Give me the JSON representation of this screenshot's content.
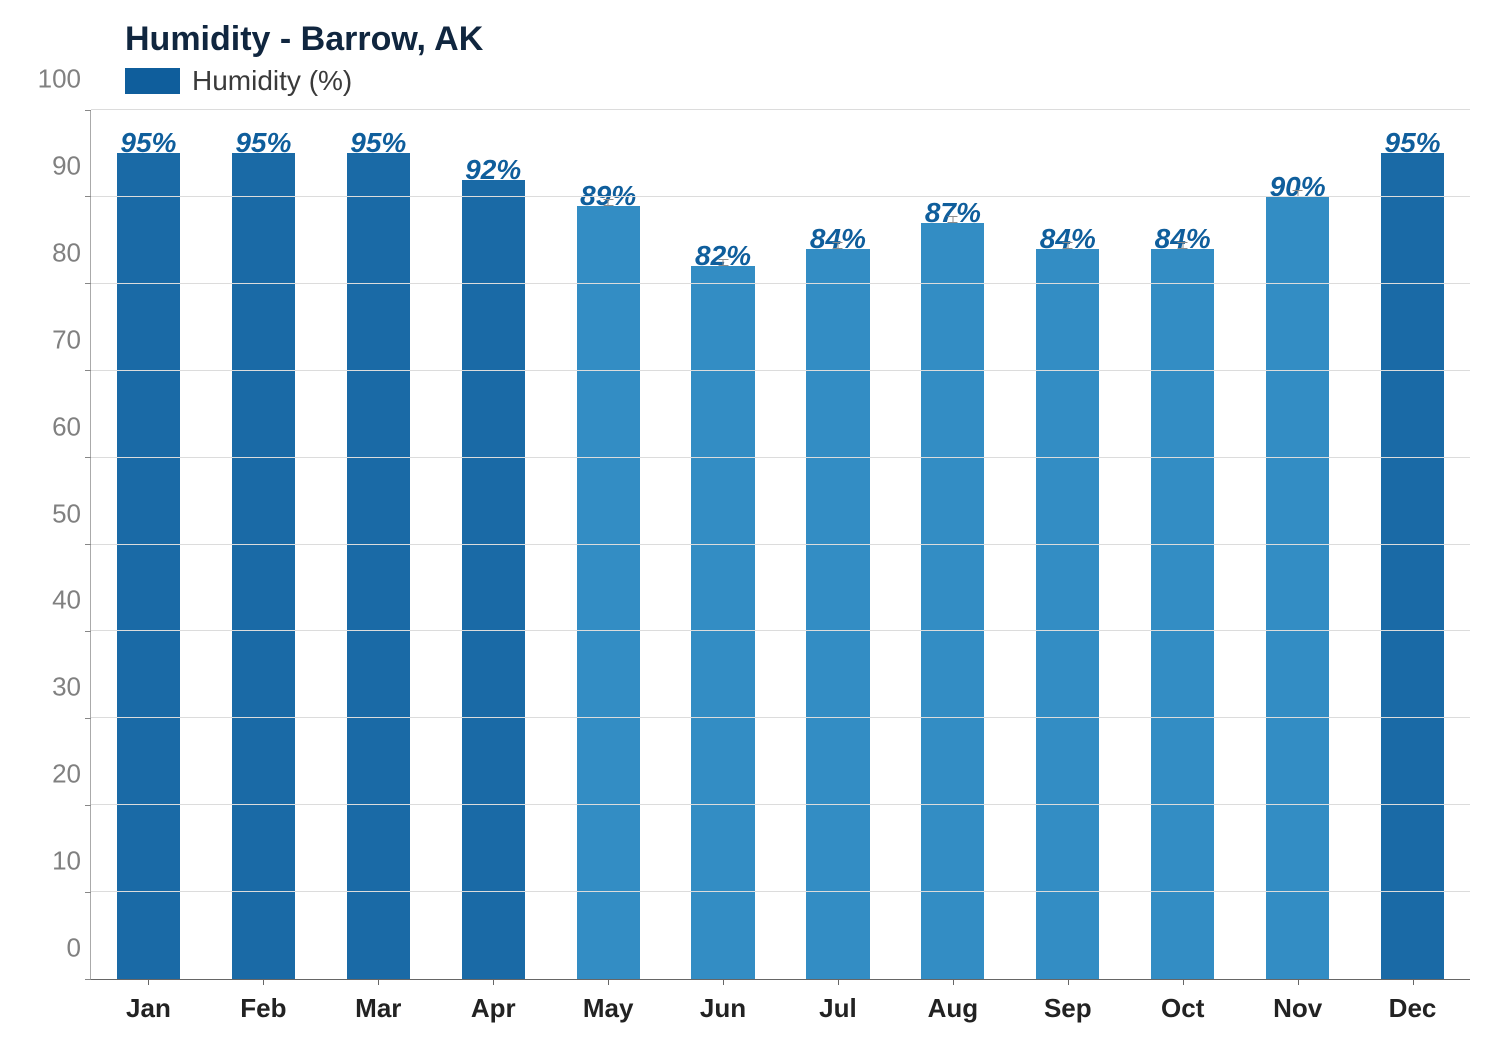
{
  "chart": {
    "type": "bar",
    "title": "Humidity - Barrow, AK",
    "legend_label": "Humidity (%)",
    "legend_swatch_color": "#0f5e9c",
    "background_color": "#ffffff",
    "grid_color": "#dcdcdc",
    "axis_color": "#666666",
    "title_color": "#10263f",
    "title_fontsize": 34,
    "legend_fontsize": 28,
    "categories": [
      "Jan",
      "Feb",
      "Mar",
      "Apr",
      "May",
      "Jun",
      "Jul",
      "Aug",
      "Sep",
      "Oct",
      "Nov",
      "Dec"
    ],
    "values": [
      95,
      95,
      95,
      92,
      89,
      82,
      84,
      87,
      84,
      84,
      90,
      95
    ],
    "value_labels": [
      "95%",
      "95%",
      "95%",
      "92%",
      "89%",
      "82%",
      "84%",
      "87%",
      "84%",
      "84%",
      "90%",
      "95%"
    ],
    "bar_colors": [
      "#1a6aa6",
      "#1a6aa6",
      "#1a6aa6",
      "#1a6aa6",
      "#338dc4",
      "#338dc4",
      "#338dc4",
      "#338dc4",
      "#338dc4",
      "#338dc4",
      "#338dc4",
      "#1a6aa6"
    ],
    "label_colors": [
      "#0f5e9c",
      "#0f5e9c",
      "#0f5e9c",
      "#0f5e9c",
      "#0f5e9c",
      "#0f5e9c",
      "#0f5e9c",
      "#0f5e9c",
      "#0f5e9c",
      "#0f5e9c",
      "#0f5e9c",
      "#0f5e9c"
    ],
    "errorbar_values": [
      0,
      0,
      0,
      0,
      0.8,
      0.8,
      0.8,
      0.8,
      0.8,
      0.8,
      0.8,
      0
    ],
    "errorbar_color": "#8c8c8c",
    "ylim": [
      0,
      100
    ],
    "yticks": [
      0,
      10,
      20,
      30,
      40,
      50,
      60,
      70,
      80,
      90,
      100
    ],
    "ytick_fontsize": 26,
    "ytick_color": "#808080",
    "xtick_fontsize": 26,
    "xtick_color": "#222222",
    "bar_width_ratio": 0.55,
    "data_label_fontsize": 28,
    "data_label_offset": -6
  }
}
